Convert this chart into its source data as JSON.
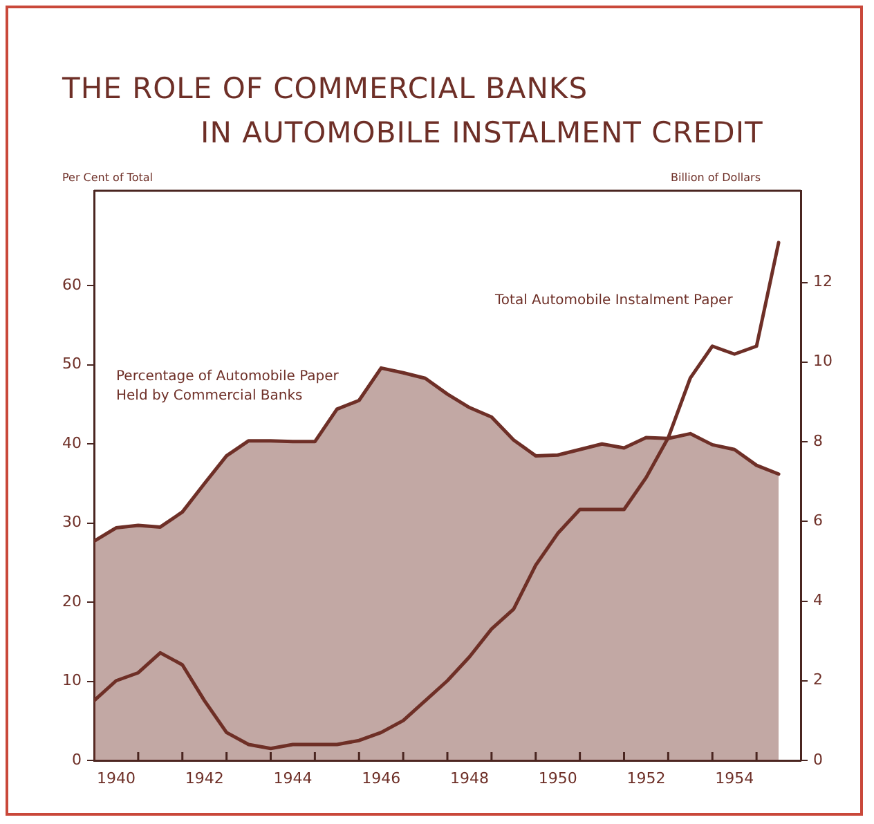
{
  "chart_data": {
    "type": "area",
    "title": "THE ROLE OF COMMERCIAL BANKS IN AUTOMOBILE INSTALMENT CREDIT",
    "ylabel": "Per Cent of Total",
    "y2label": "Billion of Dollars",
    "x": [
      1940,
      1940.5,
      1941,
      1941.5,
      1942,
      1942.5,
      1943,
      1943.5,
      1944,
      1944.5,
      1945,
      1945.5,
      1946,
      1946.5,
      1947,
      1947.5,
      1948,
      1948.5,
      1949,
      1949.5,
      1950,
      1950.5,
      1951,
      1951.5,
      1952,
      1952.5,
      1953,
      1953.5,
      1954,
      1954.5,
      1955,
      1955.5
    ],
    "xlim": [
      1940,
      1956
    ],
    "xticks": [
      {
        "value": 1940.5,
        "label": "1940"
      },
      {
        "value": 1942.5,
        "label": "1942"
      },
      {
        "value": 1944.5,
        "label": "1944"
      },
      {
        "value": 1946.5,
        "label": "1946"
      },
      {
        "value": 1948.5,
        "label": "1948"
      },
      {
        "value": 1950.5,
        "label": "1950"
      },
      {
        "value": 1952.5,
        "label": "1952"
      },
      {
        "value": 1954.5,
        "label": "1954"
      },
      {
        "value": 1941,
        "label": null
      },
      {
        "value": 1942,
        "label": null
      },
      {
        "value": 1943,
        "label": null
      },
      {
        "value": 1944,
        "label": null
      },
      {
        "value": 1945,
        "label": null
      },
      {
        "value": 1946,
        "label": null
      },
      {
        "value": 1947,
        "label": null
      },
      {
        "value": 1948,
        "label": null
      },
      {
        "value": 1949,
        "label": null
      },
      {
        "value": 1950,
        "label": null
      },
      {
        "value": 1951,
        "label": null
      },
      {
        "value": 1952,
        "label": null
      },
      {
        "value": 1953,
        "label": null
      },
      {
        "value": 1954,
        "label": null
      },
      {
        "value": 1955,
        "label": null
      }
    ],
    "ylim": [
      0,
      72
    ],
    "yticks": [
      0,
      10,
      20,
      30,
      40,
      50,
      60
    ],
    "y2lim": [
      0,
      14.3
    ],
    "y2ticks": [
      0,
      2,
      4,
      6,
      8,
      10,
      12
    ],
    "series": [
      {
        "name": "Percentage of Automobile Paper Held by Commercial Banks",
        "color": "#6e2f27",
        "values": [
          27.7,
          29.4,
          29.7,
          29.5,
          31.4,
          35.0,
          38.5,
          40.4,
          40.4,
          40.3,
          40.3,
          44.4,
          45.5,
          49.6,
          49.0,
          48.3,
          46.3,
          44.6,
          43.4,
          40.5,
          38.5,
          38.6,
          39.3,
          40.0,
          39.5,
          40.8,
          40.7,
          41.3,
          39.9,
          39.3,
          37.3,
          36.2
        ]
      },
      {
        "name": "Total Automobile Instalment Paper",
        "type": "line",
        "axis": "y2",
        "color": "#6e2f27",
        "values": [
          1.5,
          2.0,
          2.2,
          2.7,
          2.4,
          1.5,
          0.7,
          0.4,
          0.3,
          0.4,
          0.4,
          0.4,
          0.5,
          0.7,
          1.0,
          1.5,
          2.0,
          2.6,
          3.3,
          3.8,
          4.9,
          5.7,
          6.3,
          6.3,
          6.3,
          7.1,
          8.1,
          9.6,
          10.4,
          10.2,
          10.4,
          13.0
        ]
      }
    ],
    "grid": false
  }
}
